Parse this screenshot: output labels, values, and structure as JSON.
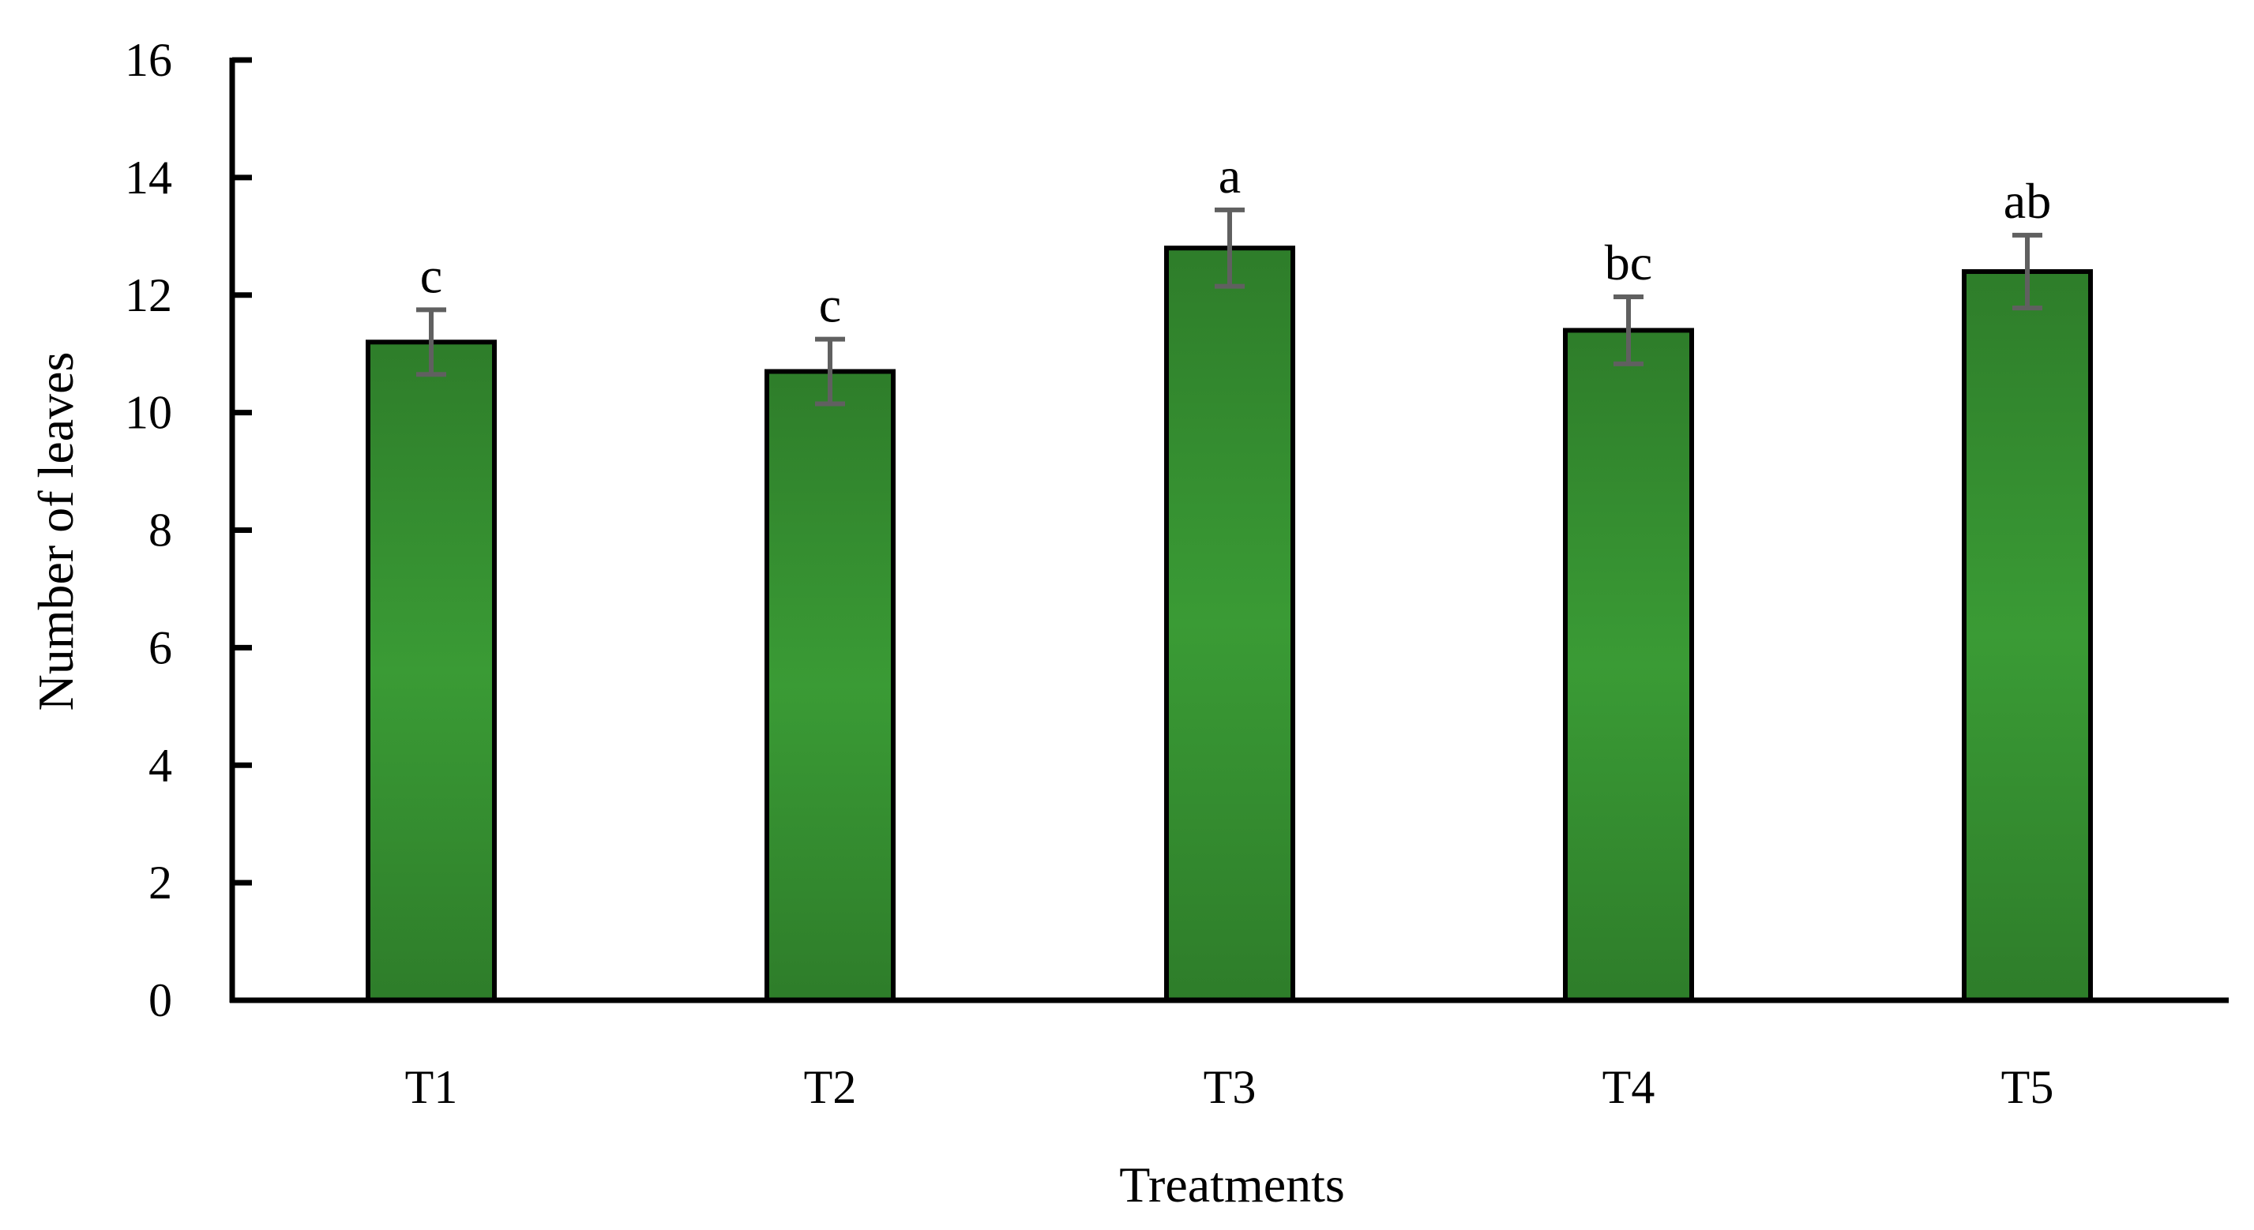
{
  "chart_data": {
    "type": "bar",
    "title": "",
    "xlabel": "Treatments",
    "ylabel": "Number of leaves",
    "categories": [
      "T1",
      "T2",
      "T3",
      "T4",
      "T5"
    ],
    "values": [
      11.2,
      10.7,
      12.8,
      11.4,
      12.4
    ],
    "error": [
      0.55,
      0.55,
      0.65,
      0.57,
      0.62
    ],
    "significance_letters": [
      "c",
      "c",
      "a",
      "bc",
      "ab"
    ],
    "ylim": [
      0,
      16
    ],
    "yticks": [
      0,
      2,
      4,
      6,
      8,
      10,
      12,
      14,
      16
    ],
    "grid": false,
    "legend": null,
    "colors": {
      "bar_fill_edge": "#2e7d2a",
      "bar_fill_center": "#3a9b35",
      "bar_outline": "#000000",
      "error_bar": "#606060",
      "axis": "#000000"
    }
  }
}
